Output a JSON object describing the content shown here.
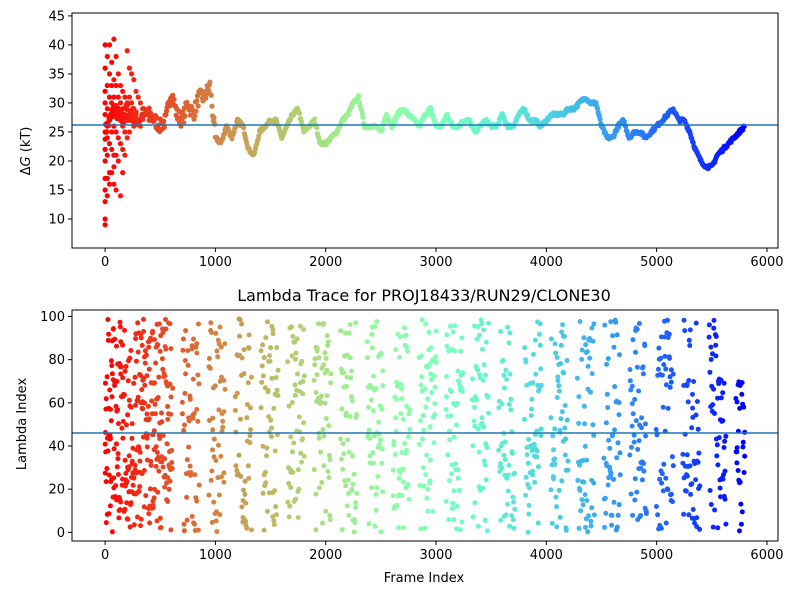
{
  "chart_data": [
    {
      "type": "scatter",
      "title": "",
      "xlabel": "",
      "ylabel_prefix": "Δ",
      "ylabel_symbol": "G",
      "ylabel_suffix": " (kT)",
      "xlim": [
        -300,
        6100
      ],
      "ylim": [
        5,
        45.5
      ],
      "xticks": [
        0,
        1000,
        2000,
        3000,
        4000,
        5000,
        6000
      ],
      "xtick_labels": [
        "0",
        "1000",
        "2000",
        "3000",
        "4000",
        "5000",
        "6000"
      ],
      "yticks": [
        10,
        15,
        20,
        25,
        30,
        35,
        40,
        45
      ],
      "ytick_labels": [
        "10",
        "15",
        "20",
        "25",
        "30",
        "35",
        "40",
        "45"
      ],
      "hline": 26.2,
      "hline_color": "#1f77b4",
      "colormap": "rainbow (red at frame 0 → purple at frame 5800)",
      "x_max": 5800,
      "trace": {
        "x": [
          0,
          40,
          80,
          120,
          160,
          200,
          250,
          300,
          350,
          400,
          450,
          500,
          550,
          600,
          650,
          700,
          750,
          800,
          850,
          900,
          950,
          1000,
          1050,
          1100,
          1150,
          1200,
          1250,
          1300,
          1350,
          1400,
          1450,
          1500,
          1550,
          1600,
          1650,
          1700,
          1750,
          1800,
          1850,
          1900,
          1950,
          2000,
          2050,
          2100,
          2150,
          2200,
          2250,
          2300,
          2350,
          2400,
          2450,
          2500,
          2550,
          2600,
          2650,
          2700,
          2750,
          2800,
          2850,
          2900,
          2950,
          3000,
          3050,
          3100,
          3150,
          3200,
          3250,
          3300,
          3350,
          3400,
          3450,
          3500,
          3550,
          3600,
          3650,
          3700,
          3750,
          3800,
          3850,
          3900,
          3950,
          4000,
          4050,
          4100,
          4150,
          4200,
          4250,
          4300,
          4350,
          4400,
          4450,
          4500,
          4550,
          4600,
          4650,
          4700,
          4750,
          4800,
          4850,
          4900,
          4950,
          5000,
          5050,
          5100,
          5150,
          5200,
          5250,
          5300,
          5350,
          5400,
          5450,
          5500,
          5550,
          5600,
          5650,
          5700,
          5750,
          5800
        ],
        "y": [
          25,
          27,
          29,
          28,
          27,
          29,
          28,
          27,
          28,
          28,
          27,
          26,
          27,
          32,
          28,
          27,
          30,
          28,
          31,
          31,
          33,
          24,
          23,
          26,
          24,
          27,
          26,
          22,
          21,
          25,
          26,
          27,
          27,
          24,
          26,
          28,
          29,
          25,
          26,
          27,
          23,
          23,
          24,
          25,
          27,
          28,
          30,
          31,
          26,
          26,
          26,
          25,
          28,
          26,
          28,
          29,
          28,
          27,
          26,
          28,
          29,
          26,
          26,
          28,
          26,
          26,
          27,
          27,
          25,
          26,
          27,
          26,
          26,
          28,
          26,
          26,
          28,
          29,
          27,
          27,
          26,
          27,
          28,
          28,
          28,
          29,
          29,
          30,
          31,
          30,
          30,
          26,
          24,
          24,
          26,
          27,
          24,
          25,
          25,
          24,
          25,
          26,
          27,
          28,
          29,
          27,
          27,
          25,
          22,
          20,
          19,
          19,
          21,
          22,
          23,
          24,
          25,
          26
        ]
      },
      "scatter_early": {
        "x": [
          0,
          0,
          0,
          0,
          0,
          0,
          0,
          0,
          0,
          0,
          0,
          0,
          0,
          20,
          20,
          20,
          20,
          20,
          20,
          20,
          20,
          40,
          40,
          40,
          40,
          40,
          40,
          40,
          60,
          60,
          60,
          60,
          60,
          60,
          80,
          80,
          80,
          80,
          80,
          80,
          80,
          100,
          100,
          100,
          100,
          100,
          100,
          120,
          120,
          120,
          120,
          120,
          140,
          140,
          140,
          140,
          140,
          160,
          160,
          160,
          160,
          160,
          180,
          180,
          180,
          180,
          200,
          200,
          200,
          200,
          220,
          220,
          220,
          220,
          240,
          240,
          240,
          260,
          260,
          260,
          280,
          280,
          300,
          300,
          320,
          320,
          340,
          360,
          380,
          400
        ],
        "y": [
          40,
          36,
          30,
          28,
          25,
          20,
          17,
          15,
          13,
          10,
          9,
          32,
          22,
          38,
          33,
          29,
          26,
          24,
          21,
          17,
          14,
          40,
          35,
          31,
          27,
          23,
          18,
          16,
          37,
          33,
          30,
          25,
          22,
          18,
          41,
          34,
          31,
          26,
          21,
          19,
          16,
          38,
          33,
          29,
          25,
          21,
          15,
          35,
          31,
          28,
          24,
          20,
          33,
          30,
          27,
          23,
          14,
          32,
          29,
          26,
          22,
          18,
          31,
          28,
          25,
          21,
          39,
          30,
          27,
          24,
          36,
          31,
          27,
          25,
          35,
          30,
          27,
          34,
          29,
          26,
          32,
          28,
          31,
          27,
          30,
          26,
          29,
          28,
          28,
          27
        ]
      }
    },
    {
      "type": "scatter",
      "title": "Lambda Trace for PROJ18433/RUN29/CLONE30",
      "xlabel": "Frame Index",
      "ylabel": "Lambda Index",
      "xlim": [
        -300,
        6100
      ],
      "ylim": [
        -4,
        103
      ],
      "xticks": [
        0,
        1000,
        2000,
        3000,
        4000,
        5000,
        6000
      ],
      "xtick_labels": [
        "0",
        "1000",
        "2000",
        "3000",
        "4000",
        "5000",
        "6000"
      ],
      "yticks": [
        0,
        20,
        40,
        60,
        80,
        100
      ],
      "ytick_labels": [
        "0",
        "20",
        "40",
        "60",
        "80",
        "100"
      ],
      "hline": 46,
      "hline_color": "#1f77b4",
      "colormap": "rainbow (red at frame 0 → purple at frame 5800)",
      "x_max": 5800,
      "points_per_frame_stride": 10,
      "distribution": "dense uniform scatter of lambda values between 0 and 99 across all frames, forming vertical column bands"
    }
  ]
}
